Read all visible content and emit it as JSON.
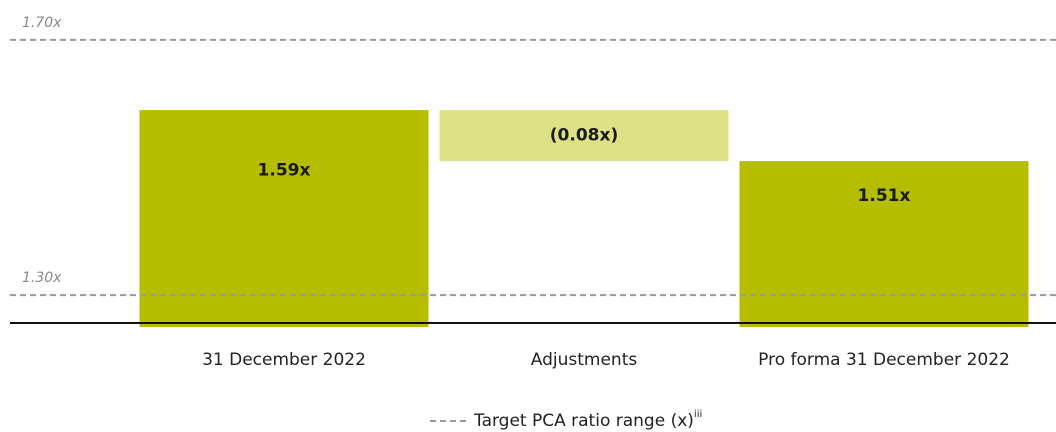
{
  "chart_data": {
    "type": "waterfall",
    "categories": [
      "31 December 2022",
      "Adjustments",
      "Pro forma 31 December 2022"
    ],
    "values": [
      1.59,
      -0.08,
      1.51
    ],
    "value_labels": [
      "1.59x",
      "(0.08x)",
      "1.51x"
    ],
    "is_total": [
      true,
      false,
      true
    ],
    "colors": [
      "#b5bd00",
      "#dde085",
      "#b5bd00"
    ],
    "ylim": [
      1.25,
      1.75
    ],
    "yticks": [
      {
        "value": 1.3,
        "label": "1.30x"
      },
      {
        "value": 1.7,
        "label": "1.70x"
      }
    ],
    "grid": true,
    "legend_label": "Target PCA ratio range (x)",
    "legend_note": "iii"
  }
}
